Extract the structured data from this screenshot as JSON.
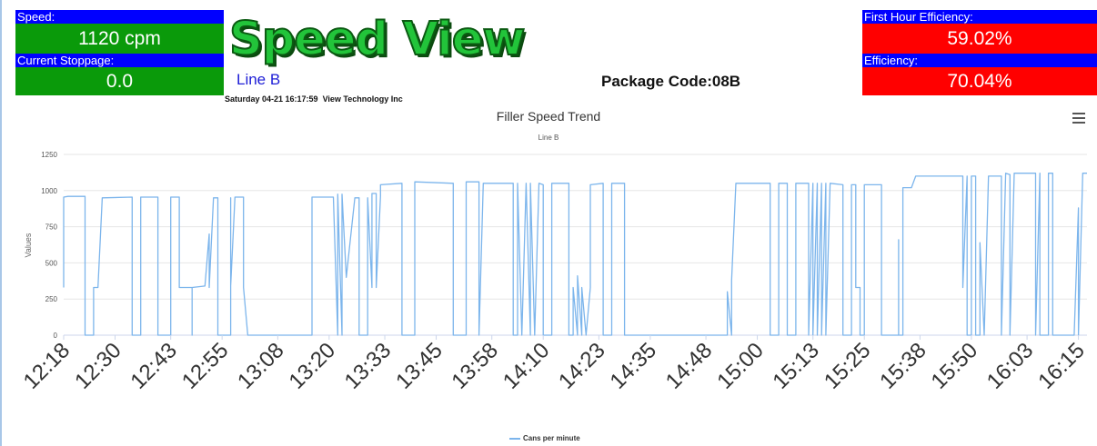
{
  "colors": {
    "label_bg": "#0000ff",
    "ok_bg": "#0a9a0a",
    "alert_bg": "#ff0000",
    "series": "#7cb5ec",
    "title_green": "#22c43a"
  },
  "panels": {
    "speed": {
      "label": "Speed:",
      "value": "1120 cpm"
    },
    "current_stoppage": {
      "label": "Current Stoppage:",
      "value": "0.0"
    },
    "first_hour_efficiency": {
      "label": "First Hour Efficiency:",
      "value": "59.02%"
    },
    "efficiency": {
      "label": "Efficiency:",
      "value": "70.04%"
    }
  },
  "header": {
    "title": "Speed View",
    "line_name": "Line B",
    "timestamp": "Saturday 04-21 16:17:59",
    "company": "View Technology Inc",
    "package_code": "Package Code:08B"
  },
  "toolbar": {
    "menu_icon": "hamburger-menu-icon"
  },
  "chart_data": {
    "type": "line",
    "title": "Filler Speed Trend",
    "subtitle": "Line B",
    "ylabel": "Values",
    "xlabel": "",
    "ylim": [
      0,
      1250
    ],
    "y_ticks": [
      0,
      250,
      500,
      750,
      1000,
      1250
    ],
    "x_start": "12:18",
    "x_end": "16:17",
    "x_ticks": [
      "12:18",
      "12:30",
      "12:43",
      "12:55",
      "13:08",
      "13:20",
      "13:33",
      "13:45",
      "13:58",
      "14:10",
      "14:23",
      "14:35",
      "14:48",
      "15:00",
      "15:13",
      "15:25",
      "15:38",
      "15:50",
      "16:03",
      "16:15"
    ],
    "grid": true,
    "legend": "bottom-center",
    "series": [
      {
        "name": "Cans per minute",
        "points": [
          [
            "12:18",
            330
          ],
          [
            "12:18",
            955
          ],
          [
            "12:19",
            960
          ],
          [
            "12:23",
            960
          ],
          [
            "12:23",
            0
          ],
          [
            "12:25",
            0
          ],
          [
            "12:25",
            330
          ],
          [
            "12:26",
            330
          ],
          [
            "12:27",
            950
          ],
          [
            "12:34",
            955
          ],
          [
            "12:34",
            0
          ],
          [
            "12:36",
            0
          ],
          [
            "12:36",
            955
          ],
          [
            "12:40",
            955
          ],
          [
            "12:40",
            0
          ],
          [
            "12:43",
            0
          ],
          [
            "12:43",
            955
          ],
          [
            "12:45",
            955
          ],
          [
            "12:45",
            330
          ],
          [
            "12:48",
            330
          ],
          [
            "12:48",
            0
          ],
          [
            "12:48",
            330
          ],
          [
            "12:51",
            340
          ],
          [
            "12:52",
            700
          ],
          [
            "12:52",
            330
          ],
          [
            "12:53",
            950
          ],
          [
            "12:54",
            950
          ],
          [
            "12:54",
            0
          ],
          [
            "12:57",
            0
          ],
          [
            "12:57",
            950
          ],
          [
            "12:57",
            340
          ],
          [
            "12:58",
            955
          ],
          [
            "13:00",
            955
          ],
          [
            "13:00",
            330
          ],
          [
            "13:01",
            0
          ],
          [
            "13:16",
            0
          ],
          [
            "13:16",
            955
          ],
          [
            "13:21",
            955
          ],
          [
            "13:22",
            0
          ],
          [
            "13:22",
            975
          ],
          [
            "13:23",
            0
          ],
          [
            "13:23",
            975
          ],
          [
            "13:24",
            400
          ],
          [
            "13:26",
            950
          ],
          [
            "13:27",
            950
          ],
          [
            "13:27",
            0
          ],
          [
            "13:29",
            0
          ],
          [
            "13:29",
            950
          ],
          [
            "13:30",
            330
          ],
          [
            "13:30",
            980
          ],
          [
            "13:31",
            980
          ],
          [
            "13:31",
            330
          ],
          [
            "13:32",
            960
          ],
          [
            "13:32",
            1000
          ],
          [
            "13:32",
            1040
          ],
          [
            "13:37",
            1050
          ],
          [
            "13:37",
            0
          ],
          [
            "13:40",
            0
          ],
          [
            "13:40",
            1060
          ],
          [
            "13:49",
            1050
          ],
          [
            "13:49",
            0
          ],
          [
            "13:52",
            0
          ],
          [
            "13:52",
            1060
          ],
          [
            "13:55",
            1060
          ],
          [
            "13:55",
            0
          ],
          [
            "13:56",
            1050
          ],
          [
            "14:03",
            1050
          ],
          [
            "14:03",
            0
          ],
          [
            "14:04",
            0
          ],
          [
            "14:04",
            1050
          ],
          [
            "14:05",
            0
          ],
          [
            "14:06",
            1050
          ],
          [
            "14:07",
            0
          ],
          [
            "14:07",
            1050
          ],
          [
            "14:08",
            0
          ],
          [
            "14:09",
            1050
          ],
          [
            "14:10",
            1040
          ],
          [
            "14:10",
            0
          ],
          [
            "14:12",
            0
          ],
          [
            "14:12",
            1050
          ],
          [
            "14:16",
            1050
          ],
          [
            "14:16",
            0
          ],
          [
            "14:17",
            0
          ],
          [
            "14:17",
            330
          ],
          [
            "14:18",
            0
          ],
          [
            "14:18",
            410
          ],
          [
            "14:19",
            0
          ],
          [
            "14:19",
            330
          ],
          [
            "14:20",
            0
          ],
          [
            "14:21",
            330
          ],
          [
            "14:21",
            1040
          ],
          [
            "14:24",
            1050
          ],
          [
            "14:24",
            0
          ],
          [
            "14:26",
            0
          ],
          [
            "14:26",
            1050
          ],
          [
            "14:29",
            1050
          ],
          [
            "14:29",
            0
          ],
          [
            "14:53",
            0
          ],
          [
            "14:53",
            300
          ],
          [
            "14:54",
            0
          ],
          [
            "14:54",
            380
          ],
          [
            "14:55",
            1050
          ],
          [
            "15:03",
            1050
          ],
          [
            "15:03",
            0
          ],
          [
            "15:05",
            0
          ],
          [
            "15:05",
            1050
          ],
          [
            "15:07",
            1050
          ],
          [
            "15:07",
            0
          ],
          [
            "15:09",
            0
          ],
          [
            "15:09",
            1050
          ],
          [
            "15:12",
            1050
          ],
          [
            "15:12",
            0
          ],
          [
            "15:13",
            1050
          ],
          [
            "15:13",
            0
          ],
          [
            "15:14",
            1050
          ],
          [
            "15:14",
            0
          ],
          [
            "15:15",
            1050
          ],
          [
            "15:15",
            0
          ],
          [
            "15:16",
            1050
          ],
          [
            "15:16",
            0
          ],
          [
            "15:17",
            1050
          ],
          [
            "15:20",
            1040
          ],
          [
            "15:20",
            0
          ],
          [
            "15:22",
            0
          ],
          [
            "15:22",
            1040
          ],
          [
            "15:23",
            1040
          ],
          [
            "15:23",
            330
          ],
          [
            "15:24",
            330
          ],
          [
            "15:24",
            0
          ],
          [
            "15:25",
            0
          ],
          [
            "15:25",
            1040
          ],
          [
            "15:29",
            1040
          ],
          [
            "15:29",
            0
          ],
          [
            "15:33",
            0
          ],
          [
            "15:33",
            660
          ],
          [
            "15:33",
            0
          ],
          [
            "15:34",
            0
          ],
          [
            "15:34",
            1020
          ],
          [
            "15:36",
            1020
          ],
          [
            "15:37",
            1100
          ],
          [
            "15:48",
            1100
          ],
          [
            "15:48",
            330
          ],
          [
            "15:49",
            1100
          ],
          [
            "15:49",
            0
          ],
          [
            "15:50",
            0
          ],
          [
            "15:50",
            1100
          ],
          [
            "15:51",
            1100
          ],
          [
            "15:51",
            0
          ],
          [
            "15:52",
            0
          ],
          [
            "15:52",
            640
          ],
          [
            "15:53",
            0
          ],
          [
            "15:54",
            1100
          ],
          [
            "15:57",
            1100
          ],
          [
            "15:57",
            0
          ],
          [
            "15:58",
            1120
          ],
          [
            "15:59",
            1110
          ],
          [
            "15:59",
            0
          ],
          [
            "16:00",
            1120
          ],
          [
            "16:05",
            1120
          ],
          [
            "16:05",
            0
          ],
          [
            "16:06",
            1120
          ],
          [
            "16:06",
            0
          ],
          [
            "16:08",
            0
          ],
          [
            "16:08",
            1120
          ],
          [
            "16:09",
            1120
          ],
          [
            "16:09",
            0
          ],
          [
            "16:14",
            0
          ],
          [
            "16:15",
            880
          ],
          [
            "16:15",
            0
          ],
          [
            "16:16",
            1120
          ],
          [
            "16:17",
            1120
          ]
        ]
      }
    ]
  }
}
